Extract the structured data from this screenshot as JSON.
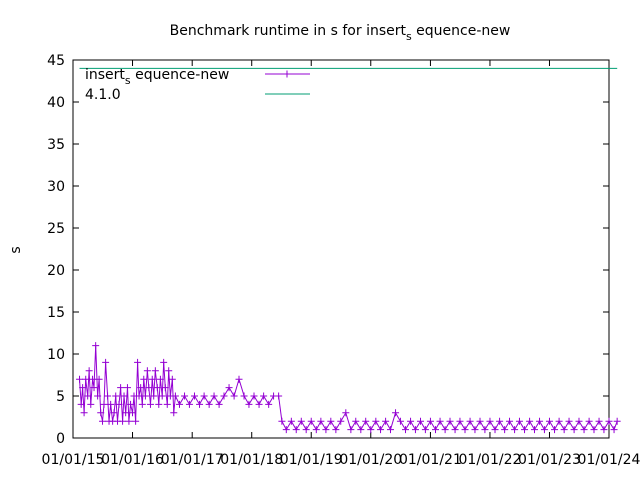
{
  "chart_data": {
    "type": "line",
    "title_main": "Benchmark runtime in s for insert",
    "title_sub": "s",
    "title_tail": " equence-new",
    "ylabel": "s",
    "xlabel": "",
    "ylim": [
      0,
      45
    ],
    "yticks": [
      0,
      5,
      10,
      15,
      20,
      25,
      30,
      35,
      40,
      45
    ],
    "xlim": [
      "2015-01-01",
      "2024-01-01"
    ],
    "xticks": [
      {
        "date": "2015-01-01",
        "label": "01/01/15"
      },
      {
        "date": "2016-01-01",
        "label": "01/01/16"
      },
      {
        "date": "2017-01-01",
        "label": "01/01/17"
      },
      {
        "date": "2018-01-01",
        "label": "01/01/18"
      },
      {
        "date": "2019-01-01",
        "label": "01/01/19"
      },
      {
        "date": "2020-01-01",
        "label": "01/01/20"
      },
      {
        "date": "2021-01-01",
        "label": "01/01/21"
      },
      {
        "date": "2022-01-01",
        "label": "01/01/22"
      },
      {
        "date": "2023-01-01",
        "label": "01/01/23"
      },
      {
        "date": "2024-01-01",
        "label": "01/01/24"
      }
    ],
    "grid": false,
    "legend_position": "top-left",
    "series": [
      {
        "name_main": "insert",
        "name_sub": "s",
        "name_tail": " equence-new",
        "color": "#9400d3",
        "marker": "plus",
        "points": [
          [
            "2015-02-10",
            7
          ],
          [
            "2015-02-20",
            4
          ],
          [
            "2015-03-01",
            6
          ],
          [
            "2015-03-10",
            3
          ],
          [
            "2015-03-20",
            7
          ],
          [
            "2015-04-01",
            5
          ],
          [
            "2015-04-10",
            8
          ],
          [
            "2015-04-20",
            4
          ],
          [
            "2015-05-01",
            7
          ],
          [
            "2015-05-10",
            6
          ],
          [
            "2015-05-20",
            11
          ],
          [
            "2015-06-01",
            5
          ],
          [
            "2015-06-10",
            7
          ],
          [
            "2015-06-20",
            3
          ],
          [
            "2015-07-01",
            2
          ],
          [
            "2015-07-10",
            4
          ],
          [
            "2015-07-20",
            9
          ],
          [
            "2015-08-01",
            5
          ],
          [
            "2015-08-10",
            2
          ],
          [
            "2015-08-20",
            4
          ],
          [
            "2015-09-01",
            2
          ],
          [
            "2015-09-10",
            3
          ],
          [
            "2015-09-20",
            5
          ],
          [
            "2015-10-01",
            2
          ],
          [
            "2015-10-10",
            4
          ],
          [
            "2015-10-20",
            6
          ],
          [
            "2015-11-01",
            2
          ],
          [
            "2015-11-10",
            5
          ],
          [
            "2015-11-20",
            3
          ],
          [
            "2015-12-01",
            6
          ],
          [
            "2015-12-10",
            2
          ],
          [
            "2015-12-20",
            4
          ],
          [
            "2016-01-01",
            3
          ],
          [
            "2016-01-10",
            5
          ],
          [
            "2016-01-20",
            2
          ],
          [
            "2016-02-01",
            9
          ],
          [
            "2016-02-10",
            5
          ],
          [
            "2016-02-20",
            6
          ],
          [
            "2016-03-01",
            4
          ],
          [
            "2016-03-10",
            7
          ],
          [
            "2016-03-20",
            5
          ],
          [
            "2016-04-01",
            8
          ],
          [
            "2016-04-10",
            6
          ],
          [
            "2016-04-20",
            4
          ],
          [
            "2016-05-01",
            7
          ],
          [
            "2016-05-10",
            5
          ],
          [
            "2016-05-20",
            8
          ],
          [
            "2016-06-01",
            6
          ],
          [
            "2016-06-10",
            4
          ],
          [
            "2016-06-20",
            7
          ],
          [
            "2016-07-01",
            5
          ],
          [
            "2016-07-10",
            9
          ],
          [
            "2016-07-20",
            6
          ],
          [
            "2016-08-01",
            4
          ],
          [
            "2016-08-10",
            8
          ],
          [
            "2016-08-20",
            5
          ],
          [
            "2016-09-01",
            7
          ],
          [
            "2016-09-10",
            3
          ],
          [
            "2016-09-20",
            5
          ],
          [
            "2016-10-15",
            4
          ],
          [
            "2016-11-15",
            5
          ],
          [
            "2016-12-15",
            4
          ],
          [
            "2017-01-15",
            5
          ],
          [
            "2017-02-15",
            4
          ],
          [
            "2017-03-15",
            5
          ],
          [
            "2017-04-15",
            4
          ],
          [
            "2017-05-15",
            5
          ],
          [
            "2017-06-15",
            4
          ],
          [
            "2017-07-15",
            5
          ],
          [
            "2017-08-15",
            6
          ],
          [
            "2017-09-15",
            5
          ],
          [
            "2017-10-15",
            7
          ],
          [
            "2017-11-15",
            5
          ],
          [
            "2017-12-15",
            4
          ],
          [
            "2018-01-15",
            5
          ],
          [
            "2018-02-15",
            4
          ],
          [
            "2018-03-15",
            5
          ],
          [
            "2018-04-15",
            4
          ],
          [
            "2018-05-15",
            5
          ],
          [
            "2018-06-15",
            5
          ],
          [
            "2018-07-05",
            2
          ],
          [
            "2018-08-01",
            1
          ],
          [
            "2018-09-01",
            2
          ],
          [
            "2018-10-01",
            1
          ],
          [
            "2018-11-01",
            2
          ],
          [
            "2018-12-01",
            1
          ],
          [
            "2019-01-01",
            2
          ],
          [
            "2019-02-01",
            1
          ],
          [
            "2019-03-01",
            2
          ],
          [
            "2019-04-01",
            1
          ],
          [
            "2019-05-01",
            2
          ],
          [
            "2019-06-01",
            1
          ],
          [
            "2019-07-01",
            2
          ],
          [
            "2019-08-01",
            3
          ],
          [
            "2019-09-01",
            1
          ],
          [
            "2019-10-01",
            2
          ],
          [
            "2019-11-01",
            1
          ],
          [
            "2019-12-01",
            2
          ],
          [
            "2020-01-01",
            1
          ],
          [
            "2020-02-01",
            2
          ],
          [
            "2020-03-01",
            1
          ],
          [
            "2020-04-01",
            2
          ],
          [
            "2020-05-01",
            1
          ],
          [
            "2020-06-01",
            3
          ],
          [
            "2020-07-01",
            2
          ],
          [
            "2020-08-01",
            1
          ],
          [
            "2020-09-01",
            2
          ],
          [
            "2020-10-01",
            1
          ],
          [
            "2020-11-01",
            2
          ],
          [
            "2020-12-01",
            1
          ],
          [
            "2021-01-01",
            2
          ],
          [
            "2021-02-01",
            1
          ],
          [
            "2021-03-01",
            2
          ],
          [
            "2021-04-01",
            1
          ],
          [
            "2021-05-01",
            2
          ],
          [
            "2021-06-01",
            1
          ],
          [
            "2021-07-01",
            2
          ],
          [
            "2021-08-01",
            1
          ],
          [
            "2021-09-01",
            2
          ],
          [
            "2021-10-01",
            1
          ],
          [
            "2021-11-01",
            2
          ],
          [
            "2021-12-01",
            1
          ],
          [
            "2022-01-01",
            2
          ],
          [
            "2022-02-01",
            1
          ],
          [
            "2022-03-01",
            2
          ],
          [
            "2022-04-01",
            1
          ],
          [
            "2022-05-01",
            2
          ],
          [
            "2022-06-01",
            1
          ],
          [
            "2022-07-01",
            2
          ],
          [
            "2022-08-01",
            1
          ],
          [
            "2022-09-01",
            2
          ],
          [
            "2022-10-01",
            1
          ],
          [
            "2022-11-01",
            2
          ],
          [
            "2022-12-01",
            1
          ],
          [
            "2023-01-01",
            2
          ],
          [
            "2023-02-01",
            1
          ],
          [
            "2023-03-01",
            2
          ],
          [
            "2023-04-01",
            1
          ],
          [
            "2023-05-01",
            2
          ],
          [
            "2023-06-01",
            1
          ],
          [
            "2023-07-01",
            2
          ],
          [
            "2023-08-01",
            1
          ],
          [
            "2023-09-01",
            2
          ],
          [
            "2023-10-01",
            1
          ],
          [
            "2023-11-01",
            2
          ],
          [
            "2023-12-01",
            1
          ],
          [
            "2024-01-01",
            2
          ],
          [
            "2024-02-01",
            1
          ],
          [
            "2024-02-20",
            2
          ]
        ]
      },
      {
        "name": "4.1.0",
        "color": "#009e73",
        "marker": "none",
        "points": [
          [
            "2015-02-10",
            44
          ],
          [
            "2024-02-20",
            44
          ]
        ]
      }
    ]
  }
}
